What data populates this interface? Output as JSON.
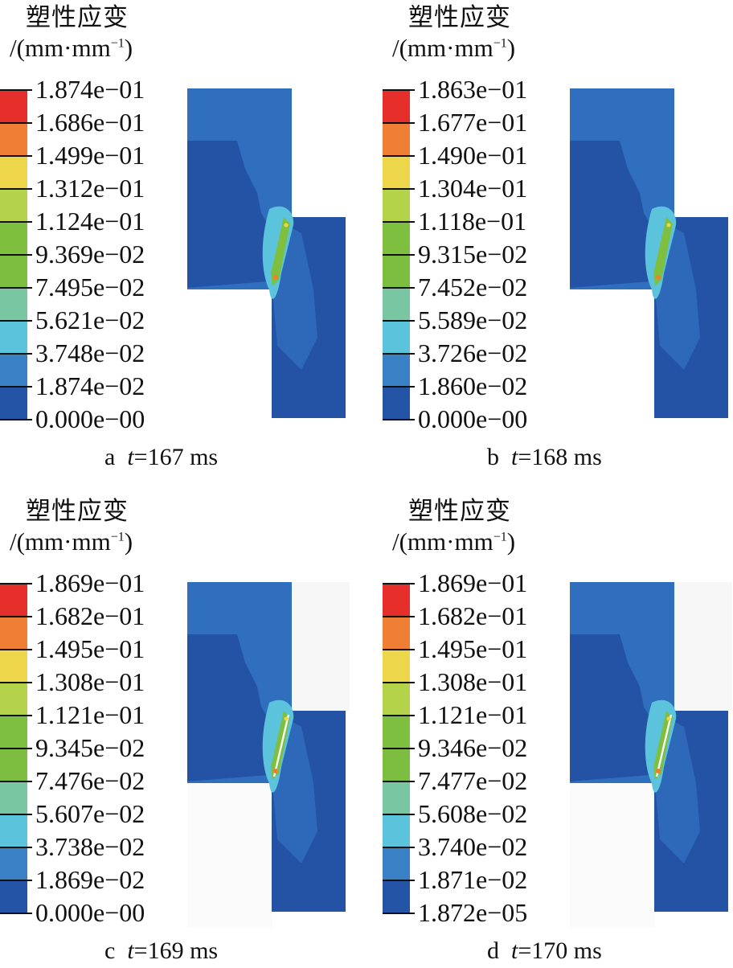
{
  "colorbar_colors": [
    "#e62f2a",
    "#ee7f34",
    "#eed64b",
    "#b4d34a",
    "#7fbf40",
    "#7dbd40",
    "#79c6a2",
    "#5cc3dc",
    "#3a80c5",
    "#2454a6"
  ],
  "panels": [
    {
      "id": "a",
      "title": "塑性应变",
      "unit": "/(mm·mm",
      "unit_exp": "−1",
      "unit_close": ")",
      "labels": [
        "1.874e−01",
        "1.686e−01",
        "1.499e−01",
        "1.312e−01",
        "1.124e−01",
        "9.369e−02",
        "7.495e−02",
        "5.621e−02",
        "3.748e−02",
        "1.874e−02",
        "0.000e−00"
      ],
      "caption_letter": "a",
      "caption_t": "t",
      "caption_value": "=167 ms",
      "separated": false
    },
    {
      "id": "b",
      "title": "塑性应变",
      "unit": "/(mm·mm",
      "unit_exp": "−1",
      "unit_close": ")",
      "labels": [
        "1.863e−01",
        "1.677e−01",
        "1.490e−01",
        "1.304e−01",
        "1.118e−01",
        "9.315e−02",
        "7.452e−02",
        "5.589e−02",
        "3.726e−02",
        "1.860e−02",
        "0.000e−00"
      ],
      "caption_letter": "b",
      "caption_t": "t",
      "caption_value": "=168 ms",
      "separated": false
    },
    {
      "id": "c",
      "title": "塑性应变",
      "unit": "/(mm·mm",
      "unit_exp": "−1",
      "unit_close": ")",
      "labels": [
        "1.869e−01",
        "1.682e−01",
        "1.495e−01",
        "1.308e−01",
        "1.121e−01",
        "9.345e−02",
        "7.476e−02",
        "5.607e−02",
        "3.738e−02",
        "1.869e−02",
        "0.000e−00"
      ],
      "caption_letter": "c",
      "caption_t": "t",
      "caption_value": "=169 ms",
      "separated": true
    },
    {
      "id": "d",
      "title": "塑性应变",
      "unit": "/(mm·mm",
      "unit_exp": "−1",
      "unit_close": ")",
      "labels": [
        "1.869e−01",
        "1.682e−01",
        "1.495e−01",
        "1.308e−01",
        "1.121e−01",
        "9.346e−02",
        "7.477e−02",
        "5.608e−02",
        "3.740e−02",
        "1.871e−02",
        "1.872e−05"
      ],
      "caption_letter": "d",
      "caption_t": "t",
      "caption_value": "=170 ms",
      "separated": true
    }
  ]
}
